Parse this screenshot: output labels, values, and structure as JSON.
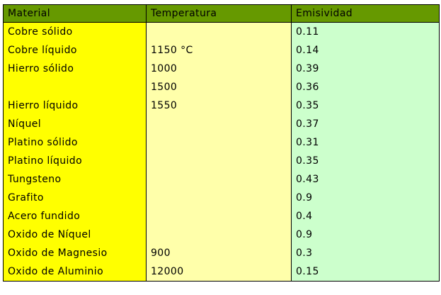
{
  "table": {
    "headers": [
      "Material",
      "Temperatura",
      "Emisividad"
    ],
    "rows": [
      {
        "material": "Cobre sólido",
        "temperatura": "",
        "emisividad": "0.11"
      },
      {
        "material": "Cobre líquido",
        "temperatura": "1150  °C",
        "emisividad": "0.14"
      },
      {
        "material": "Hierro sólido",
        "temperatura": "1000",
        "emisividad": "0.39"
      },
      {
        "material": "",
        "temperatura": "1500",
        "emisividad": "0.36"
      },
      {
        "material": "Hierro líquido",
        "temperatura": "1550",
        "emisividad": "0.35"
      },
      {
        "material": "Níquel",
        "temperatura": "",
        "emisividad": "0.37"
      },
      {
        "material": "Platino sólido",
        "temperatura": "",
        "emisividad": "0.31"
      },
      {
        "material": "Platino líquido",
        "temperatura": "",
        "emisividad": "0.35"
      },
      {
        "material": "Tungsteno",
        "temperatura": "",
        "emisividad": "0.43"
      },
      {
        "material": "Grafito",
        "temperatura": "",
        "emisividad": "0.9"
      },
      {
        "material": "Acero fundido",
        "temperatura": "",
        "emisividad": "0.4"
      },
      {
        "material": "Oxido de Níquel",
        "temperatura": "",
        "emisividad": "0.9"
      },
      {
        "material": "Oxido de Magnesio",
        "temperatura": "900",
        "emisividad": "0.3"
      },
      {
        "material": "Oxido de Aluminio",
        "temperatura": "12000",
        "emisividad": "0.15"
      }
    ]
  },
  "colors": {
    "header": "#669900",
    "material_column": "#ffff00",
    "temperature_column": "#ffffaa",
    "emissivity_column": "#ccffcc"
  }
}
